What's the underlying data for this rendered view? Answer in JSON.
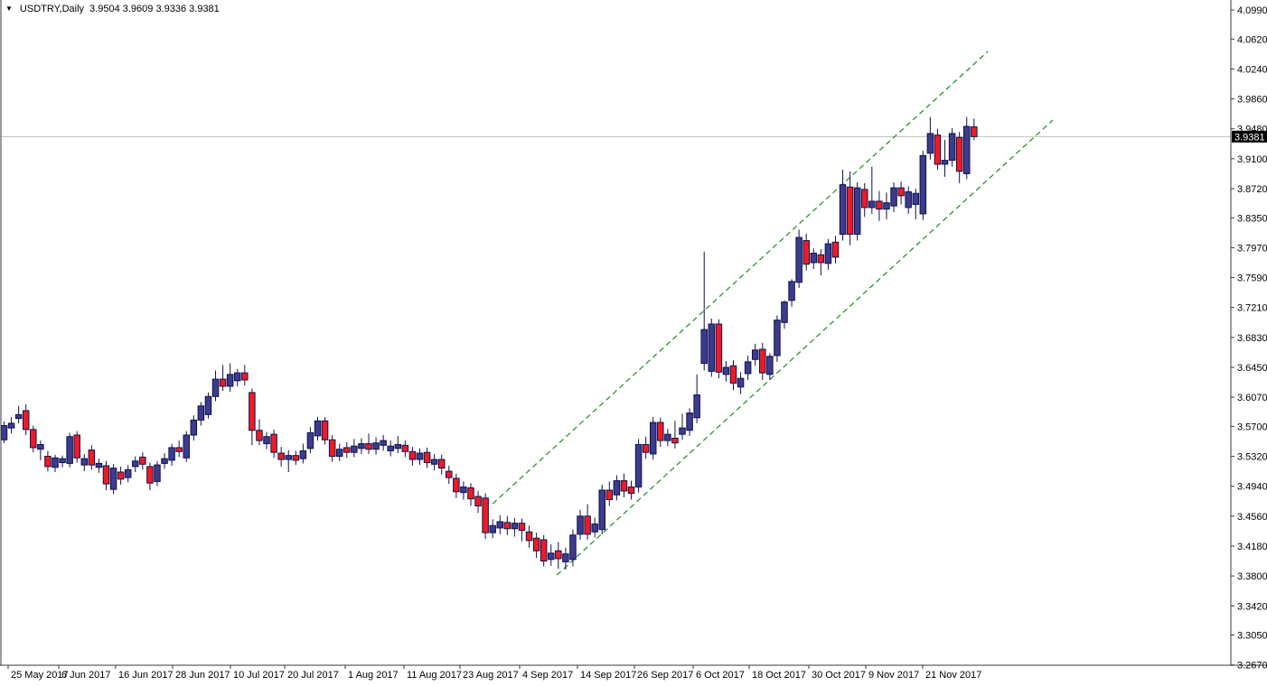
{
  "window": {
    "marker_icon": "▼",
    "symbol_period": "USDTRY,Daily",
    "quote_line": "3.9504 3.9609 3.9336 3.9381"
  },
  "chart_data": {
    "type": "candlestick",
    "symbol": "USDTRY",
    "timeframe": "Daily",
    "title": "USDTRY,Daily  3.9504 3.9609 3.9336 3.9381",
    "last_quote": {
      "open": 3.9504,
      "high": 3.9609,
      "low": 3.9336,
      "close": 3.9381
    },
    "current_price": 3.9381,
    "current_price_label": "3.9381",
    "y_axis_ticks": [
      "4.0990",
      "4.0620",
      "4.0240",
      "3.9860",
      "3.9480",
      "3.9100",
      "3.8720",
      "3.8350",
      "3.7970",
      "3.7590",
      "3.7210",
      "3.6830",
      "3.6450",
      "3.6070",
      "3.5700",
      "3.5320",
      "3.4940",
      "3.4560",
      "3.4180",
      "3.3800",
      "3.3420",
      "3.3050",
      "3.2670"
    ],
    "x_axis_ticks": [
      "25 May 2017",
      "6 Jun 2017",
      "16 Jun 2017",
      "28 Jun 2017",
      "10 Jul 2017",
      "20 Jul 2017",
      "1 Aug 2017",
      "11 Aug 2017",
      "23 Aug 2017",
      "4 Sep 2017",
      "14 Sep 2017",
      "26 Sep 2017",
      "6 Oct 2017",
      "18 Oct 2017",
      "30 Oct 2017",
      "9 Nov 2017",
      "21 Nov 2017"
    ],
    "ylim": [
      3.267,
      4.099
    ],
    "grid": false,
    "candles": [
      [
        3.553,
        3.576,
        3.549,
        3.571
      ],
      [
        3.568,
        3.582,
        3.561,
        3.574
      ],
      [
        3.58,
        3.596,
        3.574,
        3.585
      ],
      [
        3.59,
        3.598,
        3.559,
        3.566
      ],
      [
        3.566,
        3.571,
        3.537,
        3.543
      ],
      [
        3.541,
        3.552,
        3.527,
        3.547
      ],
      [
        3.532,
        3.539,
        3.513,
        3.519
      ],
      [
        3.518,
        3.534,
        3.512,
        3.53
      ],
      [
        3.524,
        3.533,
        3.518,
        3.529
      ],
      [
        3.523,
        3.562,
        3.518,
        3.557
      ],
      [
        3.559,
        3.564,
        3.524,
        3.53
      ],
      [
        3.521,
        3.535,
        3.513,
        3.529
      ],
      [
        3.54,
        3.546,
        3.515,
        3.521
      ],
      [
        3.518,
        3.529,
        3.511,
        3.523
      ],
      [
        3.52,
        3.526,
        3.489,
        3.497
      ],
      [
        3.49,
        3.522,
        3.484,
        3.517
      ],
      [
        3.512,
        3.519,
        3.496,
        3.503
      ],
      [
        3.505,
        3.521,
        3.499,
        3.515
      ],
      [
        3.519,
        3.532,
        3.512,
        3.526
      ],
      [
        3.531,
        3.537,
        3.515,
        3.522
      ],
      [
        3.519,
        3.524,
        3.489,
        3.498
      ],
      [
        3.5,
        3.526,
        3.494,
        3.521
      ],
      [
        3.523,
        3.536,
        3.516,
        3.529
      ],
      [
        3.527,
        3.548,
        3.52,
        3.543
      ],
      [
        3.543,
        3.552,
        3.531,
        3.538
      ],
      [
        3.53,
        3.564,
        3.525,
        3.559
      ],
      [
        3.559,
        3.584,
        3.552,
        3.578
      ],
      [
        3.578,
        3.601,
        3.571,
        3.596
      ],
      [
        3.585,
        3.613,
        3.58,
        3.608
      ],
      [
        3.608,
        3.641,
        3.602,
        3.63
      ],
      [
        3.63,
        3.648,
        3.615,
        3.621
      ],
      [
        3.621,
        3.65,
        3.614,
        3.636
      ],
      [
        3.628,
        3.643,
        3.621,
        3.638
      ],
      [
        3.638,
        3.648,
        3.622,
        3.629
      ],
      [
        3.613,
        3.618,
        3.546,
        3.565
      ],
      [
        3.565,
        3.579,
        3.546,
        3.552
      ],
      [
        3.548,
        3.563,
        3.541,
        3.557
      ],
      [
        3.56,
        3.566,
        3.53,
        3.537
      ],
      [
        3.536,
        3.544,
        3.519,
        3.528
      ],
      [
        3.528,
        3.54,
        3.512,
        3.533
      ],
      [
        3.533,
        3.539,
        3.521,
        3.527
      ],
      [
        3.529,
        3.548,
        3.523,
        3.539
      ],
      [
        3.542,
        3.569,
        3.536,
        3.562
      ],
      [
        3.558,
        3.582,
        3.552,
        3.577
      ],
      [
        3.577,
        3.582,
        3.547,
        3.553
      ],
      [
        3.553,
        3.559,
        3.525,
        3.532
      ],
      [
        3.532,
        3.548,
        3.526,
        3.541
      ],
      [
        3.543,
        3.55,
        3.53,
        3.537
      ],
      [
        3.537,
        3.554,
        3.531,
        3.545
      ],
      [
        3.542,
        3.555,
        3.535,
        3.548
      ],
      [
        3.548,
        3.561,
        3.535,
        3.541
      ],
      [
        3.541,
        3.556,
        3.534,
        3.549
      ],
      [
        3.546,
        3.559,
        3.539,
        3.552
      ],
      [
        3.539,
        3.552,
        3.532,
        3.545
      ],
      [
        3.542,
        3.558,
        3.536,
        3.547
      ],
      [
        3.546,
        3.552,
        3.531,
        3.538
      ],
      [
        3.538,
        3.544,
        3.52,
        3.528
      ],
      [
        3.528,
        3.542,
        3.521,
        3.536
      ],
      [
        3.537,
        3.543,
        3.517,
        3.524
      ],
      [
        3.522,
        3.535,
        3.514,
        3.528
      ],
      [
        3.528,
        3.534,
        3.509,
        3.517
      ],
      [
        3.513,
        3.52,
        3.497,
        3.505
      ],
      [
        3.504,
        3.51,
        3.479,
        3.487
      ],
      [
        3.486,
        3.5,
        3.477,
        3.493
      ],
      [
        3.492,
        3.498,
        3.469,
        3.478
      ],
      [
        3.481,
        3.488,
        3.46,
        3.469
      ],
      [
        3.479,
        3.485,
        3.427,
        3.435
      ],
      [
        3.435,
        3.452,
        3.428,
        3.444
      ],
      [
        3.441,
        3.457,
        3.433,
        3.449
      ],
      [
        3.448,
        3.456,
        3.432,
        3.44
      ],
      [
        3.44,
        3.454,
        3.43,
        3.447
      ],
      [
        3.447,
        3.453,
        3.424,
        3.438
      ],
      [
        3.436,
        3.444,
        3.416,
        3.425
      ],
      [
        3.428,
        3.435,
        3.403,
        3.412
      ],
      [
        3.426,
        3.432,
        3.392,
        3.399
      ],
      [
        3.401,
        3.42,
        3.393,
        3.409
      ],
      [
        3.412,
        3.423,
        3.389,
        3.402
      ],
      [
        3.398,
        3.416,
        3.388,
        3.408
      ],
      [
        3.401,
        3.439,
        3.392,
        3.432
      ],
      [
        3.433,
        3.464,
        3.426,
        3.456
      ],
      [
        3.456,
        3.471,
        3.426,
        3.433
      ],
      [
        3.436,
        3.454,
        3.429,
        3.446
      ],
      [
        3.439,
        3.496,
        3.433,
        3.489
      ],
      [
        3.489,
        3.5,
        3.469,
        3.477
      ],
      [
        3.483,
        3.508,
        3.476,
        3.501
      ],
      [
        3.501,
        3.51,
        3.48,
        3.488
      ],
      [
        3.493,
        3.501,
        3.477,
        3.485
      ],
      [
        3.493,
        3.554,
        3.486,
        3.547
      ],
      [
        3.547,
        3.557,
        3.529,
        3.537
      ],
      [
        3.535,
        3.582,
        3.528,
        3.575
      ],
      [
        3.575,
        3.581,
        3.544,
        3.552
      ],
      [
        3.552,
        3.567,
        3.545,
        3.56
      ],
      [
        3.555,
        3.577,
        3.542,
        3.549
      ],
      [
        3.56,
        3.586,
        3.553,
        3.568
      ],
      [
        3.565,
        3.593,
        3.558,
        3.587
      ],
      [
        3.581,
        3.636,
        3.574,
        3.61
      ],
      [
        3.65,
        3.792,
        3.641,
        3.693
      ],
      [
        3.64,
        3.707,
        3.633,
        3.7
      ],
      [
        3.7,
        3.706,
        3.631,
        3.639
      ],
      [
        3.636,
        3.653,
        3.627,
        3.645
      ],
      [
        3.647,
        3.654,
        3.616,
        3.625
      ],
      [
        3.62,
        3.639,
        3.611,
        3.631
      ],
      [
        3.637,
        3.66,
        3.629,
        3.652
      ],
      [
        3.655,
        3.675,
        3.647,
        3.667
      ],
      [
        3.668,
        3.676,
        3.629,
        3.638
      ],
      [
        3.636,
        3.663,
        3.629,
        3.659
      ],
      [
        3.66,
        3.711,
        3.652,
        3.705
      ],
      [
        3.702,
        3.73,
        3.694,
        3.728
      ],
      [
        3.73,
        3.757,
        3.722,
        3.754
      ],
      [
        3.753,
        3.82,
        3.746,
        3.81
      ],
      [
        3.806,
        3.815,
        3.768,
        3.776
      ],
      [
        3.778,
        3.796,
        3.77,
        3.79
      ],
      [
        3.788,
        3.795,
        3.762,
        3.778
      ],
      [
        3.777,
        3.808,
        3.769,
        3.802
      ],
      [
        3.804,
        3.812,
        3.777,
        3.785
      ],
      [
        3.814,
        3.896,
        3.806,
        3.877
      ],
      [
        3.874,
        3.894,
        3.8,
        3.814
      ],
      [
        3.814,
        3.88,
        3.806,
        3.873
      ],
      [
        3.871,
        3.879,
        3.836,
        3.848
      ],
      [
        3.848,
        3.9,
        3.84,
        3.856
      ],
      [
        3.856,
        3.869,
        3.831,
        3.846
      ],
      [
        3.846,
        3.867,
        3.833,
        3.854
      ],
      [
        3.85,
        3.88,
        3.842,
        3.873
      ],
      [
        3.873,
        3.881,
        3.852,
        3.863
      ],
      [
        3.848,
        3.875,
        3.84,
        3.868
      ],
      [
        3.852,
        3.872,
        3.833,
        3.866
      ],
      [
        3.84,
        3.92,
        3.832,
        3.914
      ],
      [
        3.917,
        3.963,
        3.909,
        3.942
      ],
      [
        3.94,
        3.948,
        3.896,
        3.903
      ],
      [
        3.903,
        3.934,
        3.887,
        3.908
      ],
      [
        3.908,
        3.949,
        3.9,
        3.942
      ],
      [
        3.937,
        3.944,
        3.879,
        3.894
      ],
      [
        3.891,
        3.963,
        3.884,
        3.951
      ],
      [
        3.9504,
        3.9609,
        3.9336,
        3.9381
      ]
    ],
    "trendlines": [
      {
        "name": "channel-upper",
        "bar1": 67.0,
        "price1": 3.4718,
        "bar2": 134.9,
        "price2": 4.0463,
        "style": "dashed"
      },
      {
        "name": "channel-lower",
        "bar1": 75.8,
        "price1": 3.3812,
        "bar2": 143.8,
        "price2": 3.9591,
        "style": "dashed"
      }
    ],
    "colors": {
      "bull_body": "#3C3C8C",
      "bear_body": "#ED1C24",
      "candle_outline": "#10104F",
      "trendline": "#2E9230",
      "price_line": "#BFBFBF",
      "badge_bg": "#000000",
      "badge_text": "#FFFFFF",
      "axis_line": "#3A3A3A",
      "axis_text": "#000000"
    }
  }
}
